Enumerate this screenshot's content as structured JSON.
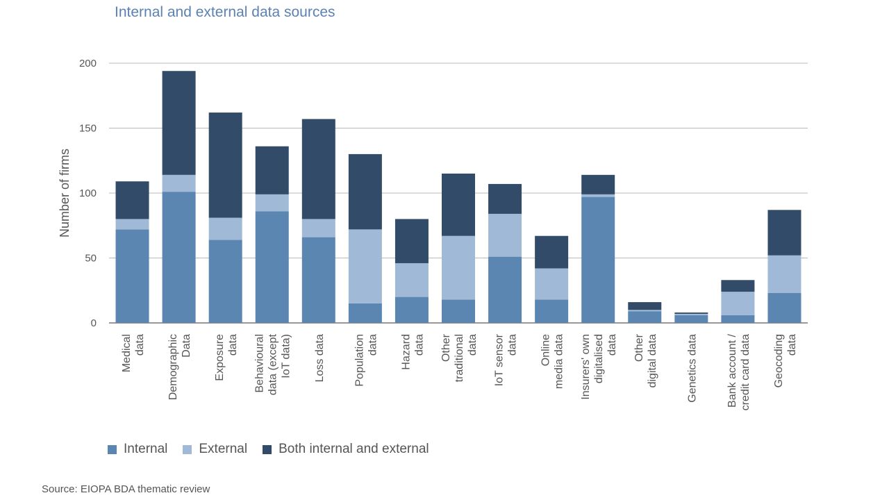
{
  "title": "Internal and external data sources",
  "source": "Source: EIOPA BDA thematic review",
  "colors": {
    "internal": "#5b86b2",
    "external": "#9fb9d6",
    "both": "#314b69",
    "grid": "#b8b8b8"
  },
  "chart_data": {
    "type": "bar",
    "stacked": true,
    "title": "Internal and external data sources",
    "ylabel": "Number of firms",
    "xlabel": "",
    "ylim": [
      0,
      200
    ],
    "yticks": [
      0,
      50,
      100,
      150,
      200
    ],
    "grid": true,
    "legend_position": "bottom",
    "categories": [
      [
        "Medical",
        "data"
      ],
      [
        "Demographic",
        "Data"
      ],
      [
        "Exposure",
        "data"
      ],
      [
        "Behavioural",
        "data (except",
        "IoT data)"
      ],
      [
        "Loss data"
      ],
      [
        "Population",
        "data"
      ],
      [
        "Hazard",
        "data"
      ],
      [
        "Other",
        "traditional",
        "data"
      ],
      [
        "IoT sensor",
        "data"
      ],
      [
        "Online",
        "media data"
      ],
      [
        "Insurers' own",
        "digitalised",
        "data"
      ],
      [
        "Other",
        "digital data"
      ],
      [
        "Genetics data"
      ],
      [
        "Bank account /",
        "credit card data"
      ],
      [
        "Geocoding",
        "data"
      ]
    ],
    "series": [
      {
        "name": "Internal",
        "values": [
          72,
          101,
          64,
          86,
          66,
          15,
          20,
          18,
          51,
          18,
          97,
          9,
          6,
          6,
          23
        ]
      },
      {
        "name": "External",
        "values": [
          8,
          13,
          17,
          13,
          14,
          57,
          26,
          49,
          33,
          24,
          2,
          1,
          1,
          18,
          29
        ]
      },
      {
        "name": "Both internal and external",
        "values": [
          29,
          80,
          81,
          37,
          77,
          58,
          34,
          48,
          23,
          25,
          15,
          6,
          1,
          9,
          35
        ]
      }
    ]
  }
}
